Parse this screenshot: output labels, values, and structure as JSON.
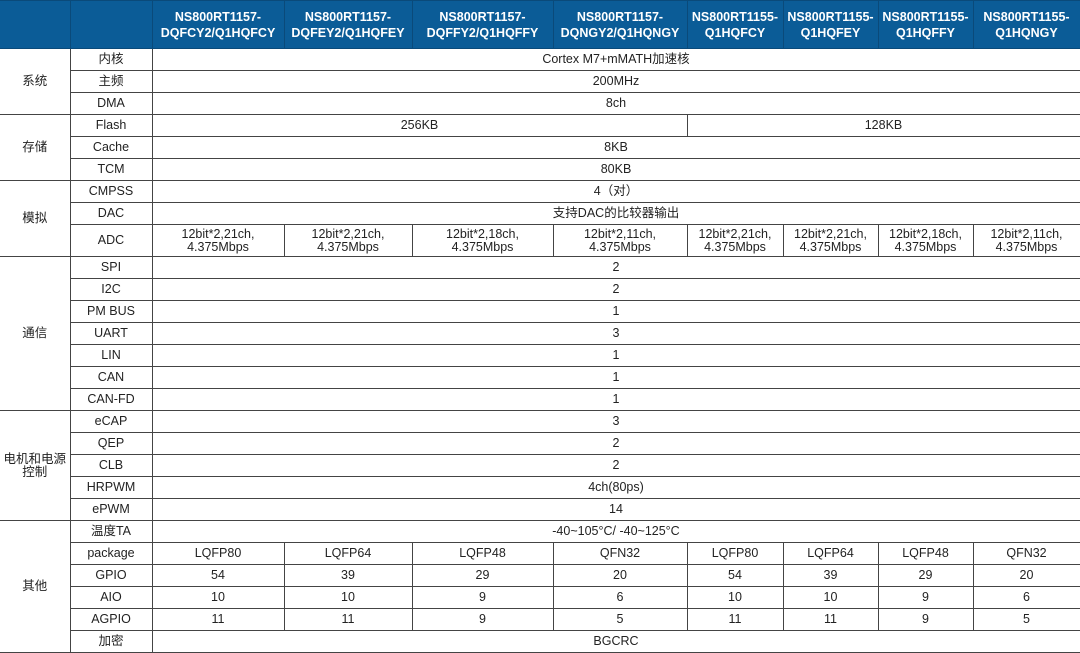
{
  "header": {
    "columns": [
      "",
      "",
      "NS800RT1157-\nDQFCY2/Q1HQFCY",
      "NS800RT1157-\nDQFEY2/Q1HQFEY",
      "NS800RT1157-\nDQFFY2/Q1HQFFY",
      "NS800RT1157-\nDQNGY2/Q1HQNGY",
      "NS800RT1155-\nQ1HQFCY",
      "NS800RT1155-\nQ1HQFEY",
      "NS800RT1155-\nQ1HQFFY",
      "NS800RT1155-\nQ1HQNGY"
    ],
    "colors": {
      "header_bg": "#0b5c97",
      "header_text": "#ffffff"
    }
  },
  "groups": [
    {
      "name": "系统",
      "rows": [
        {
          "label": "内核",
          "cells": [
            {
              "v": "Cortex M7+mMATH加速核",
              "span": 8
            }
          ]
        },
        {
          "label": "主频",
          "cells": [
            {
              "v": "200MHz",
              "span": 8
            }
          ]
        },
        {
          "label": "DMA",
          "cells": [
            {
              "v": "8ch",
              "span": 8
            }
          ]
        }
      ]
    },
    {
      "name": "存储",
      "rows": [
        {
          "label": "Flash",
          "cells": [
            {
              "v": "256KB",
              "span": 4
            },
            {
              "v": "128KB",
              "span": 4
            }
          ]
        },
        {
          "label": "Cache",
          "cells": [
            {
              "v": "8KB",
              "span": 8
            }
          ]
        },
        {
          "label": "TCM",
          "cells": [
            {
              "v": "80KB",
              "span": 8
            }
          ]
        }
      ]
    },
    {
      "name": "模拟",
      "rows": [
        {
          "label": "CMPSS",
          "cells": [
            {
              "v": "4（对）",
              "span": 8
            }
          ]
        },
        {
          "label": "DAC",
          "cells": [
            {
              "v": "支持DAC的比较器输出",
              "span": 8
            }
          ]
        },
        {
          "label": "ADC",
          "tall": true,
          "cells": [
            {
              "v": "12bit*2,21ch,\n4.375Mbps"
            },
            {
              "v": "12bit*2,21ch,\n4.375Mbps"
            },
            {
              "v": "12bit*2,18ch,\n4.375Mbps"
            },
            {
              "v": "12bit*2,11ch,\n4.375Mbps"
            },
            {
              "v": "12bit*2,21ch,\n4.375Mbps"
            },
            {
              "v": "12bit*2,21ch,\n4.375Mbps"
            },
            {
              "v": "12bit*2,18ch,\n4.375Mbps"
            },
            {
              "v": "12bit*2,11ch,\n4.375Mbps"
            }
          ]
        }
      ]
    },
    {
      "name": "通信",
      "rows": [
        {
          "label": "SPI",
          "cells": [
            {
              "v": "2",
              "span": 8
            }
          ]
        },
        {
          "label": "I2C",
          "cells": [
            {
              "v": "2",
              "span": 8
            }
          ]
        },
        {
          "label": "PM BUS",
          "cells": [
            {
              "v": "1",
              "span": 8
            }
          ]
        },
        {
          "label": "UART",
          "cells": [
            {
              "v": "3",
              "span": 8
            }
          ]
        },
        {
          "label": "LIN",
          "cells": [
            {
              "v": "1",
              "span": 8
            }
          ]
        },
        {
          "label": "CAN",
          "cells": [
            {
              "v": "1",
              "span": 8
            }
          ]
        },
        {
          "label": "CAN-FD",
          "cells": [
            {
              "v": "1",
              "span": 8
            }
          ]
        }
      ]
    },
    {
      "name": "电机和电源\n控制",
      "rows": [
        {
          "label": "eCAP",
          "cells": [
            {
              "v": "3",
              "span": 8
            }
          ]
        },
        {
          "label": "QEP",
          "cells": [
            {
              "v": "2",
              "span": 8
            }
          ]
        },
        {
          "label": "CLB",
          "cells": [
            {
              "v": "2",
              "span": 8
            }
          ]
        },
        {
          "label": "HRPWM",
          "cells": [
            {
              "v": "4ch(80ps)",
              "span": 8
            }
          ]
        },
        {
          "label": "ePWM",
          "cells": [
            {
              "v": "14",
              "span": 8
            }
          ]
        }
      ]
    },
    {
      "name": "其他",
      "rows": [
        {
          "label": "温度TA",
          "cells": [
            {
              "v": "-40~105°C/ -40~125°C",
              "span": 8
            }
          ]
        },
        {
          "label": "package",
          "cells": [
            {
              "v": "LQFP80"
            },
            {
              "v": "LQFP64"
            },
            {
              "v": "LQFP48"
            },
            {
              "v": "QFN32"
            },
            {
              "v": "LQFP80"
            },
            {
              "v": "LQFP64"
            },
            {
              "v": "LQFP48"
            },
            {
              "v": "QFN32"
            }
          ]
        },
        {
          "label": "GPIO",
          "cells": [
            {
              "v": "54"
            },
            {
              "v": "39"
            },
            {
              "v": "29"
            },
            {
              "v": "20"
            },
            {
              "v": "54"
            },
            {
              "v": "39"
            },
            {
              "v": "29"
            },
            {
              "v": "20"
            }
          ]
        },
        {
          "label": "AIO",
          "cells": [
            {
              "v": "10"
            },
            {
              "v": "10"
            },
            {
              "v": "9"
            },
            {
              "v": "6"
            },
            {
              "v": "10"
            },
            {
              "v": "10"
            },
            {
              "v": "9"
            },
            {
              "v": "6"
            }
          ]
        },
        {
          "label": "AGPIO",
          "cells": [
            {
              "v": "11"
            },
            {
              "v": "11"
            },
            {
              "v": "9"
            },
            {
              "v": "5"
            },
            {
              "v": "11"
            },
            {
              "v": "11"
            },
            {
              "v": "9"
            },
            {
              "v": "5"
            }
          ]
        },
        {
          "label": "加密",
          "cells": [
            {
              "v": "BGCRC",
              "span": 8
            }
          ]
        }
      ]
    }
  ]
}
